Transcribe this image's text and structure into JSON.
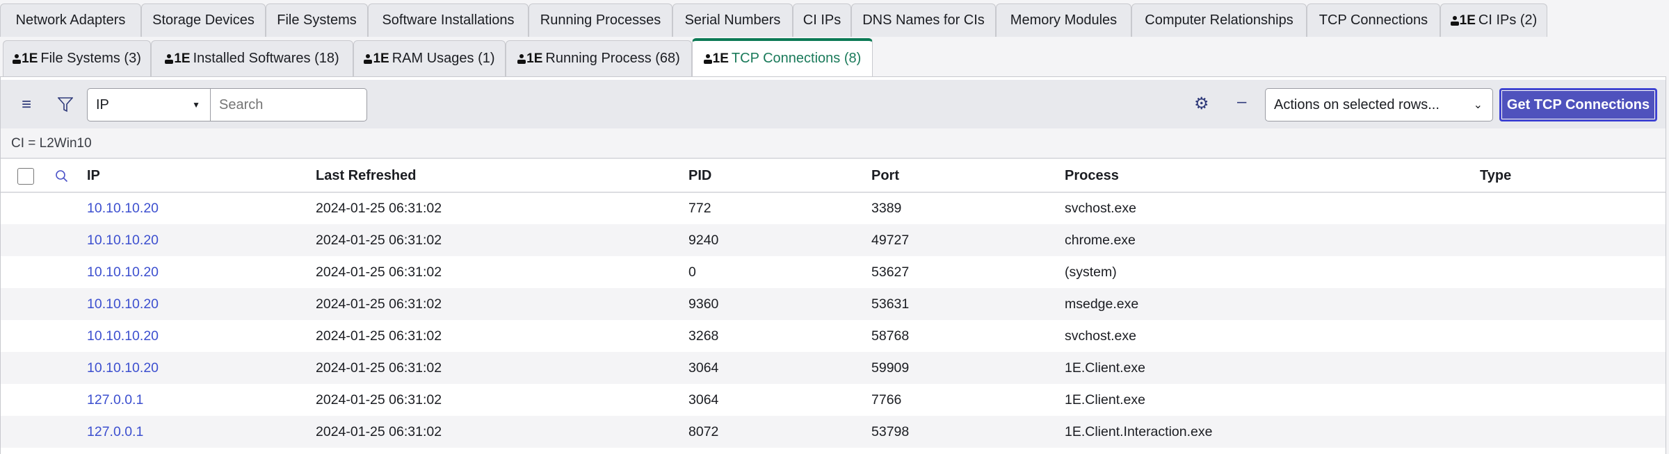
{
  "tabs_row1": [
    {
      "label": "Network Adapters",
      "logo": false
    },
    {
      "label": "Storage Devices",
      "logo": false
    },
    {
      "label": "File Systems",
      "logo": false
    },
    {
      "label": "Software Installations",
      "logo": false
    },
    {
      "label": "Running Processes",
      "logo": false
    },
    {
      "label": "Serial Numbers",
      "logo": false
    },
    {
      "label": "CI IPs",
      "logo": false
    },
    {
      "label": "DNS Names for CIs",
      "logo": false
    },
    {
      "label": "Memory Modules",
      "logo": false
    },
    {
      "label": "Computer Relationships",
      "logo": false
    },
    {
      "label": "TCP Connections",
      "logo": false
    },
    {
      "label": "CI IPs (2)",
      "logo": true
    }
  ],
  "tabs_row2": [
    {
      "label": "File Systems (3)",
      "logo": true
    },
    {
      "label": "Installed Softwares (18)",
      "logo": true
    },
    {
      "label": "RAM Usages (1)",
      "logo": true
    },
    {
      "label": "Running Process (68)",
      "logo": true
    },
    {
      "label": "TCP Connections (8)",
      "logo": true,
      "active": true
    }
  ],
  "logo_text": "1E",
  "toolbar": {
    "field_select": "IP",
    "search_placeholder": "Search",
    "actions_select": "Actions on selected rows...",
    "primary_button": "Get TCP Connections"
  },
  "filter_text": "CI = L2Win10",
  "table": {
    "columns": [
      "IP",
      "Last Refreshed",
      "PID",
      "Port",
      "Process",
      "Type"
    ],
    "rows": [
      [
        "10.10.10.20",
        "2024-01-25 06:31:02",
        "772",
        "3389",
        "svchost.exe",
        ""
      ],
      [
        "10.10.10.20",
        "2024-01-25 06:31:02",
        "9240",
        "49727",
        "chrome.exe",
        ""
      ],
      [
        "10.10.10.20",
        "2024-01-25 06:31:02",
        "0",
        "53627",
        "(system)",
        ""
      ],
      [
        "10.10.10.20",
        "2024-01-25 06:31:02",
        "9360",
        "53631",
        "msedge.exe",
        ""
      ],
      [
        "10.10.10.20",
        "2024-01-25 06:31:02",
        "3268",
        "58768",
        "svchost.exe",
        ""
      ],
      [
        "10.10.10.20",
        "2024-01-25 06:31:02",
        "3064",
        "59909",
        "1E.Client.exe",
        ""
      ],
      [
        "127.0.0.1",
        "2024-01-25 06:31:02",
        "3064",
        "7766",
        "1E.Client.exe",
        ""
      ],
      [
        "127.0.0.1",
        "2024-01-25 06:31:02",
        "8072",
        "53798",
        "1E.Client.Interaction.exe",
        ""
      ]
    ]
  },
  "colors": {
    "accent": "#0c7a55",
    "link": "#3c4fcf",
    "button": "#4f52bd"
  }
}
